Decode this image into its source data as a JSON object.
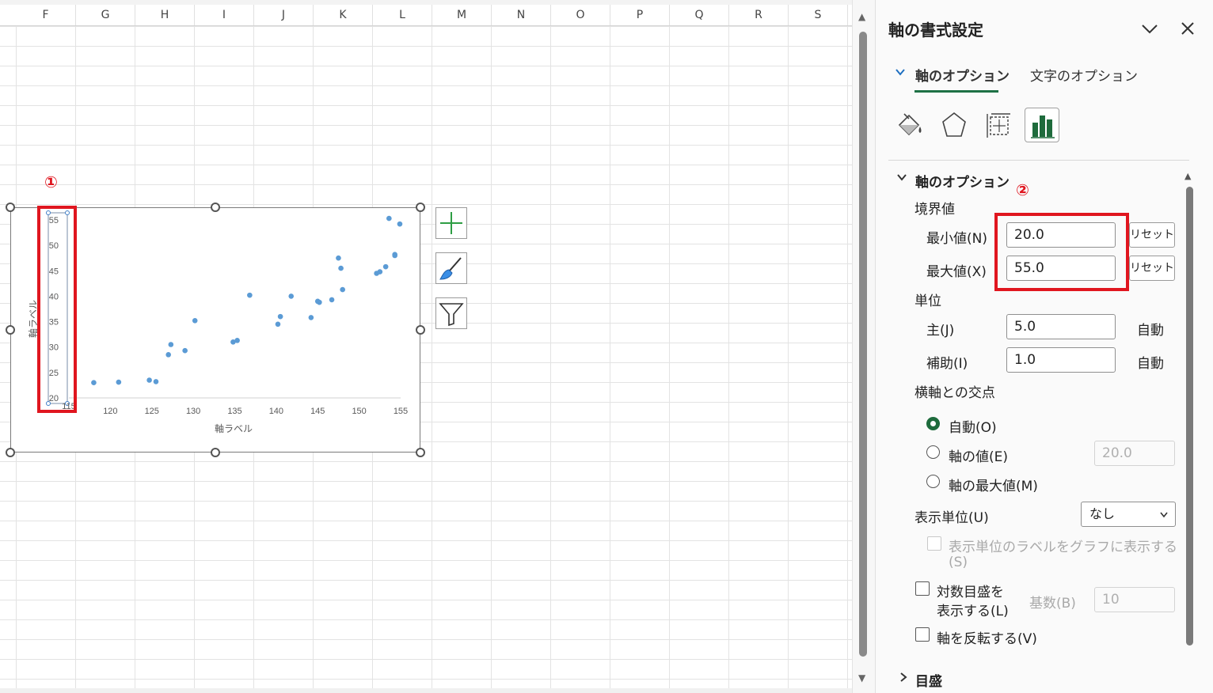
{
  "sheet": {
    "columns": [
      "F",
      "G",
      "H",
      "I",
      "J",
      "K",
      "L",
      "M",
      "N",
      "O",
      "P",
      "Q",
      "R",
      "S"
    ]
  },
  "annotations": {
    "marker1": "①",
    "marker2": "②"
  },
  "chart_data": {
    "type": "scatter",
    "xlabel": "軸ラベル",
    "ylabel": "軸ラベル",
    "xlim": [
      115,
      155
    ],
    "ylim": [
      20,
      55
    ],
    "x_ticks": [
      "120",
      "125",
      "130",
      "135",
      "140",
      "145",
      "150",
      "155"
    ],
    "y_ticks": [
      "20",
      "25",
      "30",
      "35",
      "40",
      "45",
      "50",
      "55"
    ],
    "x_partial_tick": "115",
    "grid": false,
    "color": "#5b9bd5",
    "points": [
      [
        118,
        23
      ],
      [
        121,
        23.1
      ],
      [
        124.7,
        23.5
      ],
      [
        125.5,
        23.2
      ],
      [
        127,
        28.5
      ],
      [
        127.3,
        30.5
      ],
      [
        129,
        29.3
      ],
      [
        130.2,
        35.2
      ],
      [
        134.8,
        31
      ],
      [
        135.3,
        31.3
      ],
      [
        136.8,
        40.2
      ],
      [
        140.2,
        34.5
      ],
      [
        140.5,
        36
      ],
      [
        141.8,
        40
      ],
      [
        144.2,
        35.8
      ],
      [
        145,
        39
      ],
      [
        145.2,
        38.8
      ],
      [
        146.7,
        39.3
      ],
      [
        147.5,
        47.5
      ],
      [
        147.8,
        45.5
      ],
      [
        148,
        41.3
      ],
      [
        152.1,
        44.5
      ],
      [
        152.5,
        44.8
      ],
      [
        153.2,
        45.8
      ],
      [
        153.6,
        55.3
      ],
      [
        154.3,
        48.2
      ],
      [
        154.3,
        48
      ],
      [
        154.9,
        54.2
      ]
    ]
  },
  "chart_tools": {
    "add_icon": "plus-icon",
    "style_icon": "brush-icon",
    "filter_icon": "filter-icon"
  },
  "pane": {
    "title": "軸の書式設定",
    "tabs": {
      "axis_options": "軸のオプション",
      "text_options": "文字のオプション"
    },
    "section_axis": "軸のオプション",
    "bounds_label": "境界値",
    "min_label": "最小値(N)",
    "min_value": "20.0",
    "max_label": "最大値(X)",
    "max_value": "55.0",
    "reset": "リセット",
    "units_label": "単位",
    "major_label": "主(J)",
    "major_value": "5.0",
    "minor_label": "補助(I)",
    "minor_value": "1.0",
    "auto": "自動",
    "cross_label": "横軸との交点",
    "cross_auto": "自動(O)",
    "cross_value_label": "軸の値(E)",
    "cross_value": "20.0",
    "cross_max": "軸の最大値(M)",
    "display_units_label": "表示単位(U)",
    "display_units_value": "なし",
    "show_units_label": "表示単位のラベルをグラフに表示する",
    "show_units_key": "(S)",
    "log_scale_line1": "対数目盛を",
    "log_scale_line2": "表示する(L)",
    "base_label": "基数(B)",
    "base_value": "10",
    "reverse_label": "軸を反転する(V)",
    "tick_section": "目盛"
  }
}
